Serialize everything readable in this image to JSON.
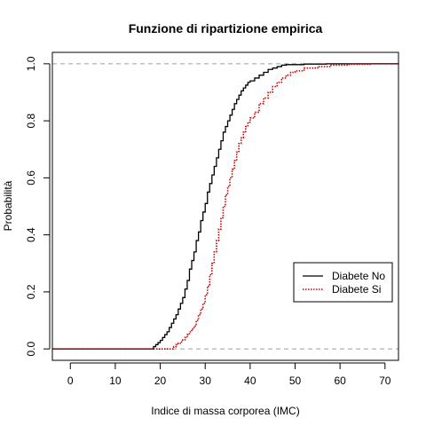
{
  "chart_data": {
    "type": "line",
    "title": "Funzione di ripartizione empirica",
    "xlabel": "Indice di massa corporea (IMC)",
    "ylabel": "Probabilità",
    "xlim": [
      -4,
      73
    ],
    "ylim": [
      -0.04,
      1.04
    ],
    "xticks": [
      0,
      10,
      20,
      30,
      40,
      50,
      60,
      70
    ],
    "yticks": [
      0.0,
      0.2,
      0.4,
      0.6,
      0.8,
      1.0
    ],
    "ytick_labels": [
      "0.0",
      "0.2",
      "0.4",
      "0.6",
      "0.8",
      "1.0"
    ],
    "hlines": [
      0,
      1
    ],
    "grid": false,
    "legend_position": "bottom-right",
    "series": [
      {
        "name": "Diabete No",
        "color": "#000000",
        "dash": "solid",
        "points": [
          [
            -4,
            0
          ],
          [
            18,
            0
          ],
          [
            18.5,
            0.008
          ],
          [
            19,
            0.015
          ],
          [
            19.5,
            0.022
          ],
          [
            20,
            0.03
          ],
          [
            20.5,
            0.04
          ],
          [
            21,
            0.05
          ],
          [
            21.5,
            0.06
          ],
          [
            22,
            0.075
          ],
          [
            22.5,
            0.09
          ],
          [
            23,
            0.105
          ],
          [
            23.5,
            0.12
          ],
          [
            24,
            0.14
          ],
          [
            24.5,
            0.16
          ],
          [
            25,
            0.18
          ],
          [
            25.5,
            0.21
          ],
          [
            26,
            0.24
          ],
          [
            26.5,
            0.28
          ],
          [
            27,
            0.31
          ],
          [
            27.5,
            0.34
          ],
          [
            28,
            0.38
          ],
          [
            28.5,
            0.41
          ],
          [
            29,
            0.45
          ],
          [
            29.5,
            0.48
          ],
          [
            30,
            0.51
          ],
          [
            30.5,
            0.55
          ],
          [
            31,
            0.58
          ],
          [
            31.5,
            0.61
          ],
          [
            32,
            0.64
          ],
          [
            32.5,
            0.67
          ],
          [
            33,
            0.7
          ],
          [
            33.5,
            0.73
          ],
          [
            34,
            0.76
          ],
          [
            34.5,
            0.78
          ],
          [
            35,
            0.8
          ],
          [
            35.5,
            0.82
          ],
          [
            36,
            0.84
          ],
          [
            36.5,
            0.86
          ],
          [
            37,
            0.875
          ],
          [
            37.5,
            0.89
          ],
          [
            38,
            0.905
          ],
          [
            38.5,
            0.915
          ],
          [
            39,
            0.925
          ],
          [
            39.5,
            0.935
          ],
          [
            40,
            0.94
          ],
          [
            41,
            0.95
          ],
          [
            42,
            0.96
          ],
          [
            43,
            0.97
          ],
          [
            44,
            0.98
          ],
          [
            45,
            0.985
          ],
          [
            46,
            0.99
          ],
          [
            47,
            0.995
          ],
          [
            48,
            0.997
          ],
          [
            52,
            0.999
          ],
          [
            57,
            1.0
          ],
          [
            73,
            1.0
          ]
        ]
      },
      {
        "name": "Diabete Si",
        "color": "#cc0000",
        "dash": "dotted",
        "points": [
          [
            -4,
            0
          ],
          [
            22.5,
            0
          ],
          [
            23,
            0.008
          ],
          [
            23.5,
            0.015
          ],
          [
            24,
            0.02
          ],
          [
            24.5,
            0.025
          ],
          [
            25,
            0.032
          ],
          [
            25.5,
            0.04
          ],
          [
            26,
            0.05
          ],
          [
            26.5,
            0.06
          ],
          [
            27,
            0.07
          ],
          [
            27.5,
            0.08
          ],
          [
            28,
            0.1
          ],
          [
            28.5,
            0.12
          ],
          [
            29,
            0.14
          ],
          [
            29.5,
            0.16
          ],
          [
            30,
            0.19
          ],
          [
            30.5,
            0.22
          ],
          [
            31,
            0.26
          ],
          [
            31.5,
            0.3
          ],
          [
            32,
            0.34
          ],
          [
            32.5,
            0.38
          ],
          [
            33,
            0.42
          ],
          [
            33.5,
            0.46
          ],
          [
            34,
            0.5
          ],
          [
            34.5,
            0.54
          ],
          [
            35,
            0.57
          ],
          [
            35.5,
            0.6
          ],
          [
            36,
            0.63
          ],
          [
            36.5,
            0.66
          ],
          [
            37,
            0.69
          ],
          [
            37.5,
            0.72
          ],
          [
            38,
            0.74
          ],
          [
            38.5,
            0.76
          ],
          [
            39,
            0.78
          ],
          [
            39.5,
            0.795
          ],
          [
            40,
            0.81
          ],
          [
            41,
            0.83
          ],
          [
            42,
            0.86
          ],
          [
            43,
            0.88
          ],
          [
            44,
            0.9
          ],
          [
            45,
            0.92
          ],
          [
            46,
            0.935
          ],
          [
            47,
            0.95
          ],
          [
            48,
            0.96
          ],
          [
            49,
            0.97
          ],
          [
            50,
            0.975
          ],
          [
            52,
            0.985
          ],
          [
            55,
            0.99
          ],
          [
            58,
            0.995
          ],
          [
            62,
            0.998
          ],
          [
            67,
            1.0
          ],
          [
            73,
            1.0
          ]
        ]
      }
    ]
  }
}
